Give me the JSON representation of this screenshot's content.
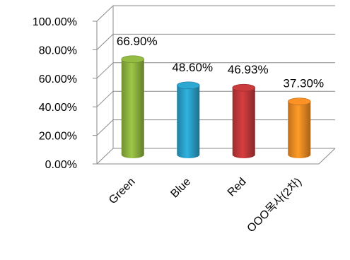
{
  "chart_data": {
    "type": "bar",
    "style": "3d-cylinder",
    "categories": [
      "Green",
      "Blue",
      "Red",
      "OOO목사(2차)"
    ],
    "values": [
      66.9,
      48.6,
      46.93,
      37.3
    ],
    "data_labels": [
      "66.90%",
      "48.60%",
      "46.93%",
      "37.30%"
    ],
    "colors": [
      "#8db33f",
      "#2aa0c8",
      "#c0383a",
      "#f08b23"
    ],
    "y_ticks": [
      "0.00%",
      "20.00%",
      "40.00%",
      "60.00%",
      "80.00%",
      "100.00%"
    ],
    "ylim": [
      0,
      100
    ],
    "grid": true,
    "legend": "none"
  }
}
